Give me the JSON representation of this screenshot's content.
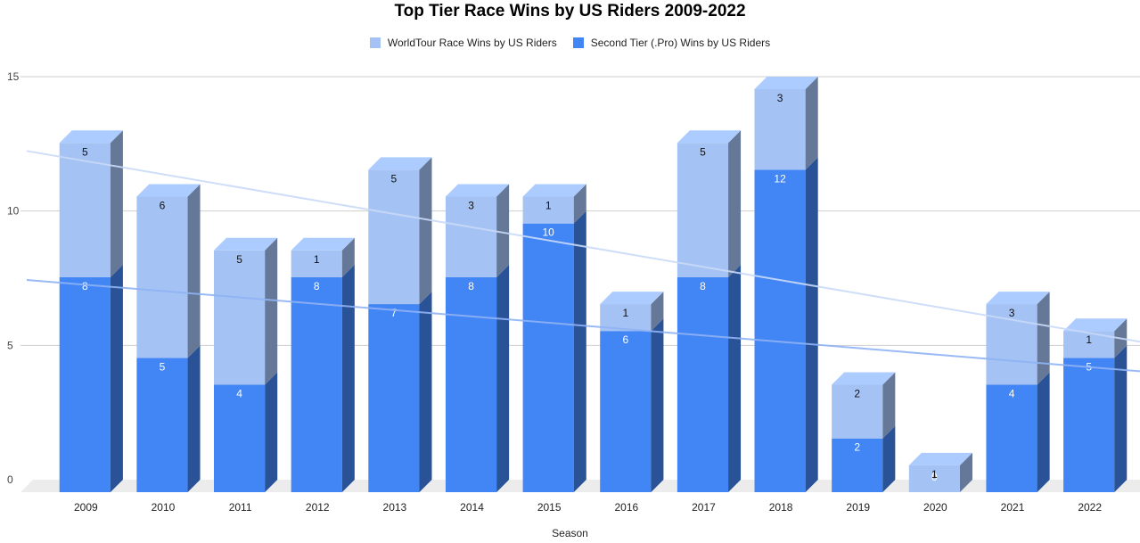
{
  "chart_data": {
    "type": "bar",
    "stacked": true,
    "three_d": true,
    "title": "Top Tier Race Wins by US Riders 2009-2022",
    "xlabel": "Season",
    "ylabel": "",
    "categories": [
      "2009",
      "2010",
      "2011",
      "2012",
      "2013",
      "2014",
      "2015",
      "2016",
      "2017",
      "2018",
      "2019",
      "2020",
      "2021",
      "2022"
    ],
    "series": [
      {
        "name": "Second Tier (.Pro) Wins by US Riders",
        "color": "#4285f4",
        "values": [
          8,
          5,
          4,
          8,
          7,
          8,
          10,
          6,
          8,
          12,
          2,
          0,
          4,
          5
        ]
      },
      {
        "name": "WorldTour Race Wins by US Riders",
        "color": "#a4c2f4",
        "values": [
          5,
          6,
          5,
          1,
          5,
          3,
          1,
          1,
          5,
          3,
          2,
          1,
          3,
          1
        ]
      }
    ],
    "legend_order": [
      "WorldTour Race Wins by US Riders",
      "Second Tier (.Pro) Wins by US Riders"
    ],
    "ylim": [
      0,
      15
    ],
    "yticks": [
      "0",
      "5",
      "10",
      "15"
    ],
    "grid": true,
    "legend_position": "top",
    "trendlines": [
      {
        "series": "WorldTour Race Wins by US Riders",
        "color": "#c9daf8",
        "start": 12.7,
        "end": 5.6
      },
      {
        "series": "Second Tier (.Pro) Wins by US Riders",
        "color": "#8fb3f5",
        "start": 7.9,
        "end": 4.5
      }
    ]
  }
}
